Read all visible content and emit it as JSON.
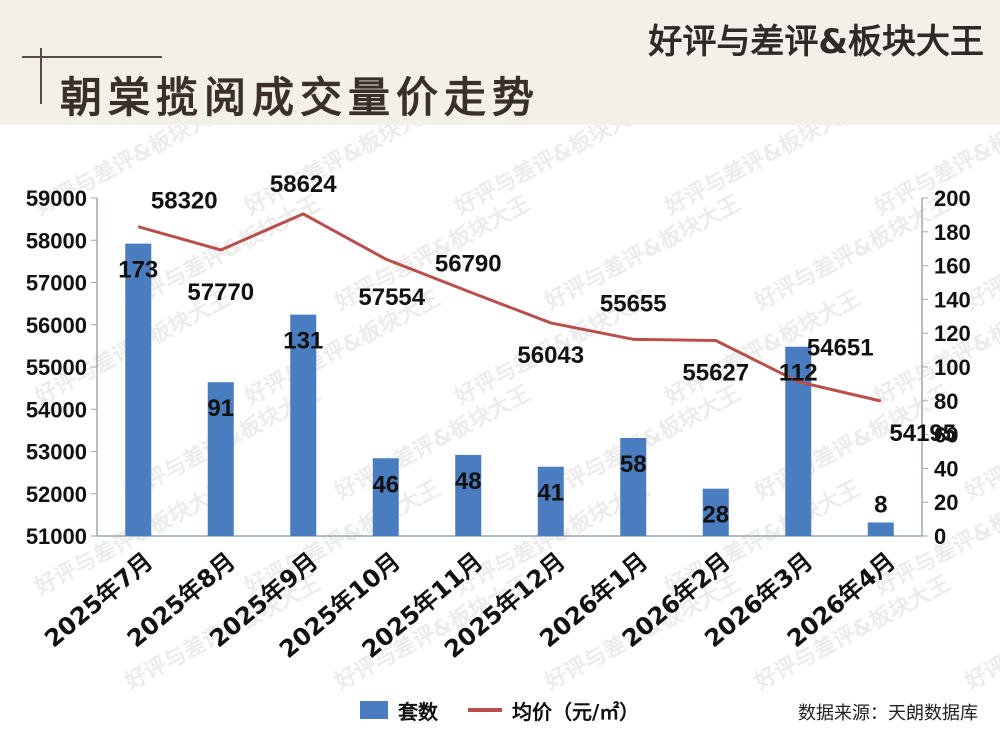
{
  "header": {
    "title": "朝棠揽阅成交量价走势",
    "logo": "好评与差评&板块大王"
  },
  "watermark": "好评与差评&板块大王",
  "colors": {
    "bar": "#4a7cc0",
    "line": "#b84f4a",
    "text": "#111111"
  },
  "chart_data": {
    "type": "bar",
    "categories": [
      "2025年7月",
      "2025年8月",
      "2025年9月",
      "2025年10月",
      "2025年11月",
      "2025年12月",
      "2026年1月",
      "2026年2月",
      "2026年3月",
      "2026年4月"
    ],
    "series": [
      {
        "name": "套数",
        "type": "bar",
        "axis": "right",
        "values": [
          173,
          91,
          131,
          46,
          48,
          41,
          58,
          28,
          112,
          8
        ]
      },
      {
        "name": "均价（元/㎡）",
        "type": "line",
        "axis": "left",
        "values": [
          58320,
          57770,
          58624,
          57554,
          56790,
          56043,
          55655,
          55627,
          54651,
          54195
        ]
      }
    ],
    "y_left": {
      "min": 51000,
      "max": 59000,
      "ticks": [
        51000,
        52000,
        53000,
        54000,
        55000,
        56000,
        57000,
        58000,
        59000
      ]
    },
    "y_right": {
      "min": 0,
      "max": 200,
      "ticks": [
        0,
        20,
        40,
        60,
        80,
        100,
        120,
        140,
        160,
        180,
        200
      ]
    },
    "legend_position": "bottom",
    "grid": false
  },
  "legend": {
    "bar_label": "套数",
    "line_label": "均价（元/㎡）"
  },
  "source": "数据来源：天朗数据库"
}
